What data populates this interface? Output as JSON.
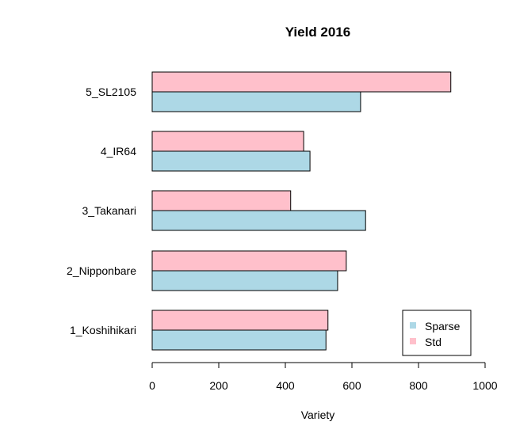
{
  "chart_data": {
    "type": "bar",
    "orientation": "horizontal",
    "title": "Yield 2016",
    "xlabel": "Variety",
    "ylabel": "",
    "xlim": [
      0,
      1000
    ],
    "xticks": [
      0,
      200,
      400,
      600,
      800,
      1000
    ],
    "categories": [
      "1_Koshihikari",
      "2_Nipponbare",
      "3_Takanari",
      "4_IR64",
      "5_SL2105"
    ],
    "series": [
      {
        "name": "Sparse",
        "color": "#ADD8E6",
        "values": [
          522,
          557,
          641,
          474,
          626
        ]
      },
      {
        "name": "Std",
        "color": "#FFC0CB",
        "values": [
          528,
          583,
          416,
          455,
          897
        ]
      }
    ],
    "legend": {
      "placement": "bottom-right"
    },
    "grid": false
  }
}
